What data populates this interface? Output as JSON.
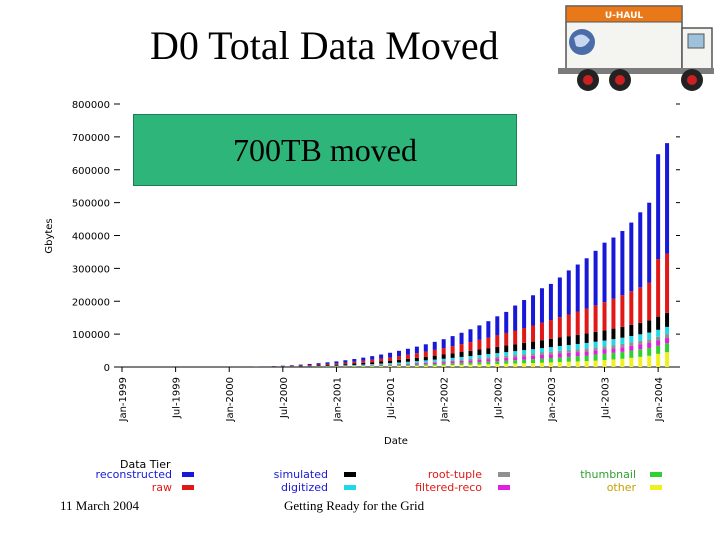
{
  "slide": {
    "title": "D0 Total Data Moved",
    "callout": "700TB moved",
    "footer_date": "11 March 2004",
    "footer_center": "Getting Ready for the Grid"
  },
  "truck": {
    "brand": "U-HAUL"
  },
  "chart_data": {
    "type": "bar",
    "stacked": true,
    "xlabel": "Date",
    "ylabel": "Gbytes",
    "ylim": [
      0,
      800000
    ],
    "y_ticks": [
      0,
      100000,
      200000,
      300000,
      400000,
      500000,
      600000,
      700000,
      800000
    ],
    "y_tick_labels": [
      "0",
      "100000",
      "200000",
      "300000",
      "400000",
      "500000",
      "600000",
      "700000",
      "800000"
    ],
    "x_tick_labels": [
      "Jan-1999",
      "Jul-1999",
      "Jan-2000",
      "Jul-2000",
      "Jan-2001",
      "Jul-2001",
      "Jan-2002",
      "Jul-2002",
      "Jan-2003",
      "Jul-2003",
      "Jan-2004"
    ],
    "legend_title": "Data Tier",
    "x": [
      "Apr-2000",
      "May-2000",
      "Jun-2000",
      "Jul-2000",
      "Aug-2000",
      "Sep-2000",
      "Oct-2000",
      "Nov-2000",
      "Dec-2000",
      "Jan-2001",
      "Feb-2001",
      "Mar-2001",
      "Apr-2001",
      "May-2001",
      "Jun-2001",
      "Jul-2001",
      "Aug-2001",
      "Sep-2001",
      "Oct-2001",
      "Nov-2001",
      "Dec-2001",
      "Jan-2002",
      "Feb-2002",
      "Mar-2002",
      "Apr-2002",
      "May-2002",
      "Jun-2002",
      "Jul-2002",
      "Aug-2002",
      "Sep-2002",
      "Oct-2002",
      "Nov-2002",
      "Dec-2002",
      "Jan-2003",
      "Feb-2003",
      "Mar-2003",
      "Apr-2003",
      "May-2003",
      "Jun-2003",
      "Jul-2003",
      "Aug-2003",
      "Sep-2003",
      "Oct-2003",
      "Nov-2003",
      "Dec-2003",
      "Jan-2004",
      "Feb-2004"
    ],
    "series": [
      {
        "name": "other",
        "color": "#f0f020",
        "values": [
          100,
          100,
          200,
          300,
          400,
          500,
          600,
          700,
          800,
          1000,
          1200,
          1500,
          1800,
          2000,
          2300,
          2600,
          3000,
          3400,
          3800,
          4200,
          4700,
          5200,
          5800,
          6400,
          7000,
          7700,
          8400,
          9000,
          9800,
          10500,
          11300,
          12000,
          13000,
          14000,
          15000,
          16000,
          17000,
          18000,
          19500,
          21000,
          23000,
          25000,
          28000,
          31000,
          34000,
          40000,
          45000
        ]
      },
      {
        "name": "thumbnail",
        "color": "#30d030",
        "values": [
          100,
          100,
          200,
          300,
          400,
          500,
          600,
          700,
          800,
          900,
          1100,
          1400,
          1600,
          1900,
          2200,
          2500,
          2800,
          3200,
          3600,
          4000,
          4400,
          4900,
          5400,
          6000,
          6500,
          7200,
          7800,
          8500,
          9200,
          10000,
          10800,
          11500,
          12500,
          13300,
          14200,
          15000,
          16000,
          17000,
          18000,
          19000,
          20000,
          21000,
          22000,
          23000,
          24000,
          25000,
          27000
        ]
      },
      {
        "name": "filtered-reco",
        "color": "#e020e0",
        "values": [
          0,
          0,
          0,
          0,
          100,
          100,
          200,
          300,
          400,
          500,
          700,
          900,
          1100,
          1400,
          1700,
          2000,
          2400,
          2800,
          3300,
          3800,
          4300,
          4900,
          5500,
          6100,
          6700,
          7300,
          7900,
          8500,
          9100,
          9600,
          10100,
          10600,
          11000,
          11400,
          11800,
          12100,
          12400,
          12700,
          13000,
          13300,
          13600,
          14000,
          14300,
          14600,
          15000,
          15500,
          16000
        ]
      },
      {
        "name": "root-tuple",
        "color": "#909090",
        "values": [
          0,
          0,
          0,
          0,
          0,
          100,
          100,
          200,
          300,
          400,
          500,
          600,
          800,
          1000,
          1200,
          1400,
          1700,
          2000,
          2300,
          2600,
          2900,
          3300,
          3700,
          4100,
          4500,
          5000,
          5400,
          5800,
          6200,
          6600,
          7000,
          7300,
          7600,
          7900,
          8200,
          8500,
          8800,
          9100,
          9400,
          9700,
          10000,
          10300,
          10600,
          10900,
          11200,
          11500,
          12000
        ]
      },
      {
        "name": "digitized",
        "color": "#20d8e8",
        "values": [
          100,
          100,
          200,
          300,
          400,
          500,
          600,
          800,
          1000,
          1200,
          1500,
          1800,
          2200,
          2600,
          3000,
          3500,
          4000,
          4500,
          5000,
          5600,
          6200,
          6800,
          7400,
          8000,
          8600,
          9200,
          9800,
          10400,
          11000,
          11600,
          12200,
          12800,
          13400,
          14000,
          14600,
          15200,
          15800,
          16400,
          17000,
          17600,
          18200,
          18800,
          19400,
          20000,
          20600,
          21200,
          22000
        ]
      },
      {
        "name": "simulated",
        "color": "#000000",
        "values": [
          200,
          300,
          500,
          700,
          1000,
          1300,
          1700,
          2100,
          2600,
          3100,
          3700,
          4300,
          5000,
          5700,
          6500,
          7300,
          8200,
          9100,
          10000,
          11000,
          12000,
          13000,
          14000,
          15000,
          16000,
          17000,
          18000,
          19000,
          20000,
          21000,
          22000,
          23000,
          24000,
          25000,
          26000,
          27000,
          28000,
          29000,
          30000,
          31000,
          32000,
          33000,
          34000,
          35000,
          37000,
          40000,
          43000
        ]
      },
      {
        "name": "raw",
        "color": "#e01818",
        "values": [
          300,
          500,
          700,
          1000,
          1400,
          1800,
          2300,
          2800,
          3400,
          4000,
          4800,
          5600,
          6500,
          7500,
          8600,
          9800,
          11100,
          12500,
          14000,
          15700,
          17500,
          19500,
          21700,
          24000,
          26500,
          29200,
          32000,
          35000,
          38300,
          41700,
          45300,
          49000,
          53000,
          57200,
          61500,
          66000,
          70700,
          75500,
          80500,
          85600,
          91000,
          96500,
          102000,
          108000,
          115000,
          175000,
          180000
        ]
      },
      {
        "name": "reconstructed",
        "color": "#1818d8",
        "values": [
          500,
          700,
          1000,
          1400,
          1900,
          2500,
          3200,
          4000,
          4900,
          5900,
          7000,
          8200,
          9500,
          11000,
          12500,
          14200,
          16000,
          18000,
          20000,
          22100,
          24500,
          27000,
          30500,
          34500,
          39000,
          44000,
          50000,
          58000,
          64000,
          76000,
          85000,
          92000,
          105000,
          110000,
          121000,
          134000,
          143000,
          153000,
          166000,
          181000,
          186000,
          195000,
          209000,
          228000,
          243000,
          319000,
          336000
        ]
      }
    ]
  }
}
